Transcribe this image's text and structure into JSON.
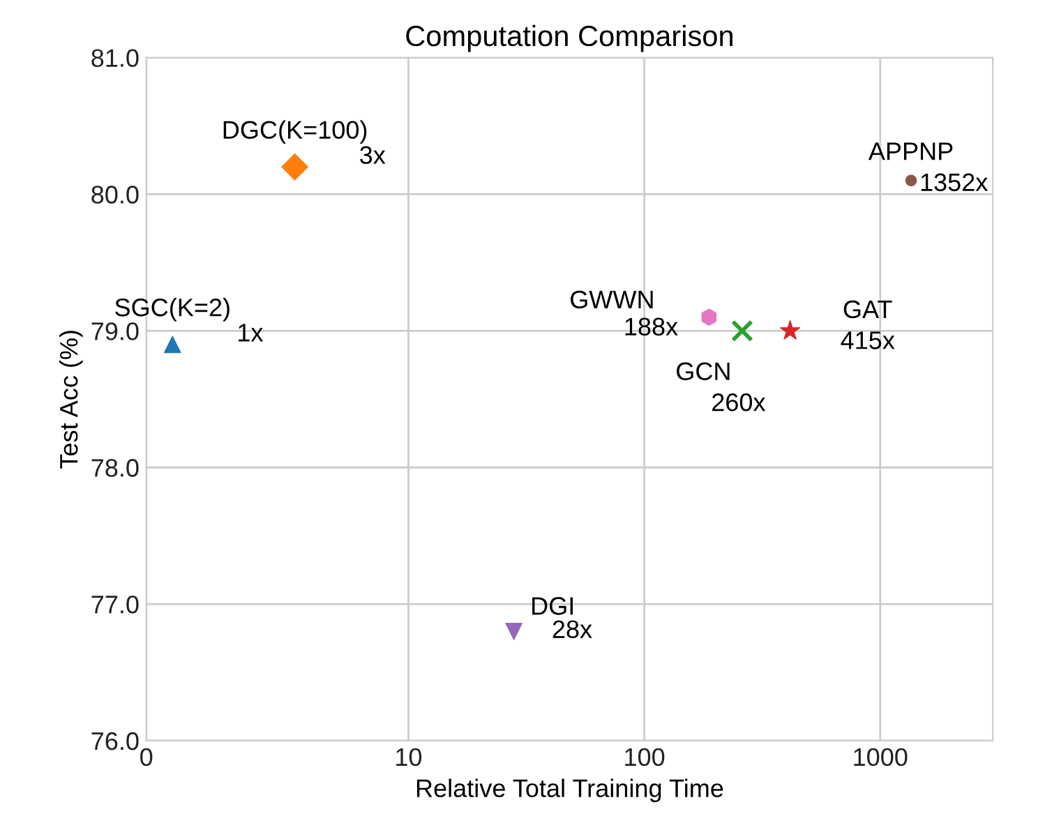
{
  "chart_data": {
    "type": "scatter",
    "title": "Computation Comparison",
    "xlabel": "Relative Total Training Time",
    "ylabel": "Test Acc (%)",
    "log": "x",
    "xlim": [
      0,
      3000
    ],
    "xticks": [
      0,
      10,
      100,
      1000
    ],
    "ylim": [
      76.0,
      81.0
    ],
    "yticks": [
      {
        "value": 76,
        "label": "76.0"
      },
      {
        "value": 77,
        "label": "77.0"
      },
      {
        "value": 78,
        "label": "78.0"
      },
      {
        "value": 79,
        "label": "79.0"
      },
      {
        "value": 80,
        "label": "80.0"
      },
      {
        "value": 81,
        "label": "81.0"
      }
    ],
    "grid": true,
    "legend": false,
    "series": [
      {
        "name": "SGC(K=2)",
        "color": "#1f77b4",
        "marker": "triangle",
        "x": [
          1
        ],
        "values": [
          78.9
        ]
      },
      {
        "name": "DGC(K=100)",
        "color": "#ff7f0e",
        "marker": "diamond",
        "x": [
          3.3
        ],
        "values": [
          80.2
        ]
      },
      {
        "name": "DGI",
        "color": "#9467bd",
        "x": [
          28
        ],
        "values": [
          76.8
        ]
      },
      {
        "name": "GWWN",
        "color": "#e377c2",
        "x": [
          188
        ],
        "values": [
          79.1
        ]
      },
      {
        "name": "GCN",
        "color": "#2ca02c",
        "marker": "cross",
        "x": [
          260
        ],
        "values": [
          79.0
        ]
      },
      {
        "name": "GAT",
        "color": "#d62728",
        "marker": "star",
        "x": [
          415
        ],
        "values": [
          79.0
        ]
      },
      {
        "name": "APPNP",
        "color": "#8c564b",
        "marker": "circle",
        "x": [
          1352
        ],
        "values": [
          80.1
        ]
      }
    ],
    "annotations": [
      {
        "text": "1x",
        "x": 1,
        "y": 78.9
      },
      {
        "text": "3x",
        "x": 3.3,
        "y": 80.2
      },
      {
        "text": "28x",
        "x": 28,
        "y": 76.8
      },
      {
        "text": "188x",
        "x": 188,
        "y": 79.1
      },
      {
        "text": "260x",
        "x": 260,
        "y": 79.0
      },
      {
        "text": "415x",
        "x": 415,
        "y": 79.0
      },
      {
        "text": "1352x",
        "x": 1352,
        "y": 80.1
      }
    ]
  }
}
